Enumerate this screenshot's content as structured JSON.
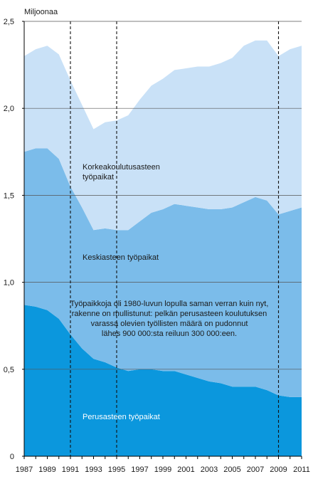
{
  "chart_data": {
    "type": "area",
    "stacked": true,
    "unit_label": "Miljoonaa",
    "x": [
      1987,
      1988,
      1989,
      1990,
      1991,
      1992,
      1993,
      1994,
      1995,
      1996,
      1997,
      1998,
      1999,
      2000,
      2001,
      2002,
      2003,
      2004,
      2005,
      2006,
      2007,
      2008,
      2009,
      2010,
      2011
    ],
    "x_tick_labels": [
      "1987",
      "1989",
      "1991",
      "1993",
      "1995",
      "1997",
      "1999",
      "2001",
      "2003",
      "2005",
      "2007",
      "2009",
      "2011"
    ],
    "ylim": [
      0,
      2.5
    ],
    "y_tick_labels": [
      "0",
      "0,5",
      "1,0",
      "1,5",
      "2,0",
      "2,5"
    ],
    "y_ticks": [
      0,
      0.5,
      1.0,
      1.5,
      2.0,
      2.5
    ],
    "grid": "horizontal",
    "dashed_year_markers": [
      1991,
      1995,
      2009
    ],
    "series": [
      {
        "name": "Perusasteen työpaikat",
        "color": "#0b97dd",
        "values": [
          0.87,
          0.86,
          0.84,
          0.79,
          0.7,
          0.62,
          0.56,
          0.54,
          0.51,
          0.49,
          0.5,
          0.5,
          0.49,
          0.49,
          0.47,
          0.45,
          0.43,
          0.42,
          0.4,
          0.4,
          0.4,
          0.38,
          0.35,
          0.34,
          0.34
        ]
      },
      {
        "name": "Keskiasteen työpaikat",
        "color": "#7bbcea",
        "values": [
          0.88,
          0.91,
          0.93,
          0.92,
          0.85,
          0.81,
          0.74,
          0.77,
          0.79,
          0.81,
          0.85,
          0.9,
          0.93,
          0.96,
          0.97,
          0.98,
          0.99,
          1.0,
          1.03,
          1.06,
          1.09,
          1.09,
          1.04,
          1.07,
          1.09
        ]
      },
      {
        "name": "Korkeakoulutusasteen työpaikat",
        "color": "#c9e1f7",
        "values": [
          0.55,
          0.57,
          0.59,
          0.6,
          0.61,
          0.59,
          0.58,
          0.61,
          0.63,
          0.66,
          0.7,
          0.73,
          0.75,
          0.77,
          0.79,
          0.81,
          0.82,
          0.84,
          0.86,
          0.9,
          0.9,
          0.92,
          0.91,
          0.93,
          0.93
        ]
      }
    ],
    "area_labels": {
      "korkea_line1": "Korkeakoulutusasteen",
      "korkea_line2": "työpaikat",
      "keski": "Keskiasteen työpaikat",
      "perus": "Perusasteen työpaikat"
    },
    "annotation_lines": [
      "Työpaikkoja oli 1980-luvun lopulla saman verran kuin nyt,",
      "rakenne on mullistunut: pelkän perusasteen koulutuksen",
      "varassa olevien työllisten määrä on pudonnut",
      "lähes 900 000:sta reiluun 300 000:een."
    ]
  }
}
